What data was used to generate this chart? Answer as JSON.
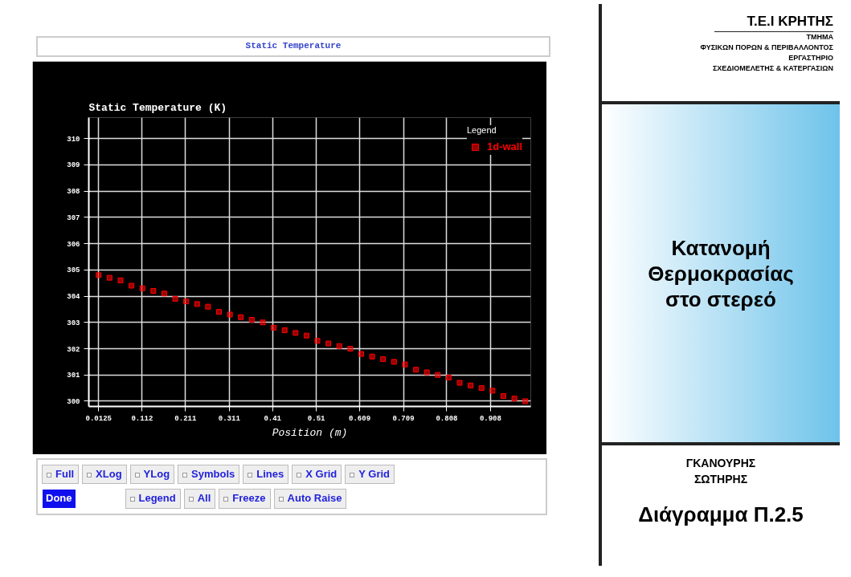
{
  "chart_data": {
    "type": "scatter",
    "title": "Static Temperature",
    "ylabel": "Static Temperature (K)",
    "xlabel": "Position (m)",
    "legend_title": "Legend",
    "legend": "top right",
    "grid": true,
    "marker": "square",
    "x": [
      0.0125,
      0.0375,
      0.0625,
      0.0875,
      0.1125,
      0.1375,
      0.1625,
      0.1875,
      0.2125,
      0.2375,
      0.2625,
      0.2875,
      0.3125,
      0.3375,
      0.3625,
      0.3875,
      0.4125,
      0.4375,
      0.4625,
      0.4875,
      0.5125,
      0.5375,
      0.5625,
      0.5875,
      0.6125,
      0.6375,
      0.6625,
      0.6875,
      0.7125,
      0.7375,
      0.7625,
      0.7875,
      0.8125,
      0.8375,
      0.8625,
      0.8875,
      0.9125,
      0.9375,
      0.9625,
      0.9875
    ],
    "series": [
      {
        "name": "1d-wall",
        "color": "#ff0000",
        "values": [
          304.8,
          304.7,
          304.6,
          304.4,
          304.3,
          304.2,
          304.1,
          303.9,
          303.8,
          303.7,
          303.6,
          303.4,
          303.3,
          303.2,
          303.1,
          303.0,
          302.8,
          302.7,
          302.6,
          302.5,
          302.3,
          302.2,
          302.1,
          302.0,
          301.8,
          301.7,
          301.6,
          301.5,
          301.4,
          301.2,
          301.1,
          301.0,
          300.9,
          300.7,
          300.6,
          300.5,
          300.4,
          300.2,
          300.1,
          300.0
        ]
      }
    ],
    "xlim": [
      -0.01,
      1.0
    ],
    "ylim": [
      299.8,
      310.8
    ],
    "xticks": [
      {
        "value": 0.0125,
        "label": "0.0125"
      },
      0.112,
      0.211,
      0.311,
      0.41,
      0.51,
      0.609,
      0.709,
      0.808,
      0.908
    ],
    "yticks": [
      300,
      301,
      302,
      303,
      304,
      305,
      306,
      307,
      308,
      309,
      310
    ],
    "annotations": [
      "Τ.Ε.Ι ΚΡΗΤΗΣ",
      "ΤΜΗΜΑ",
      "ΦΥΣΙΚΩΝ ΠΟΡΩΝ & ΠΕΡΙΒΑΛΛΟΝΤΟΣ",
      "ΕΡΓΑΣΤΗΡΙΟ",
      "ΣΧΕΔΙΟΜΕΛΕΤΗΣ & ΚΑΤΕΡΓΑΣΙΩΝ",
      "Κατανομή",
      "Θερμοκρασίας",
      "στο στερεό",
      "ΓΚΑΝΟΥΡΗΣ",
      "ΣΩΤΗΡΗΣ",
      "Διάγραμμα Π.2.5",
      "Full",
      "XLog",
      "YLog",
      "Symbols",
      "Lines",
      "X Grid",
      "Y Grid",
      "Done",
      "Legend",
      "All",
      "Freeze",
      "Auto Raise"
    ]
  }
}
